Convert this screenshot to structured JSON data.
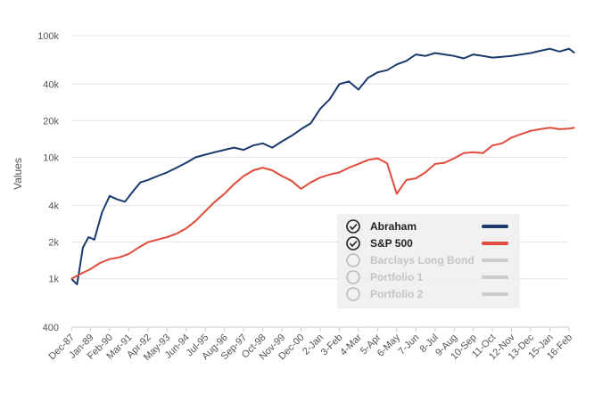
{
  "chart_data": {
    "type": "line",
    "title": "",
    "xlabel": "",
    "ylabel": "Values",
    "y_scale": "log",
    "ylim": [
      400,
      100000
    ],
    "y_ticks": [
      {
        "value": 400,
        "label": "400"
      },
      {
        "value": 1000,
        "label": "1k"
      },
      {
        "value": 2000,
        "label": "2k"
      },
      {
        "value": 4000,
        "label": "4k"
      },
      {
        "value": 10000,
        "label": "10k"
      },
      {
        "value": 20000,
        "label": "20k"
      },
      {
        "value": 40000,
        "label": "40k"
      },
      {
        "value": 100000,
        "label": "100k"
      }
    ],
    "x_ticks": [
      "Dec-87",
      "Jan-89",
      "Feb-90",
      "Mar-91",
      "Apr-92",
      "May-93",
      "Jun-94",
      "Jul-95",
      "Aug-96",
      "Sep-97",
      "Oct-98",
      "Nov-99",
      "Dec-00",
      "2-Jan",
      "3-Feb",
      "4-Mar",
      "5-Apr",
      "6-May",
      "7-Jun",
      "8-Jul",
      "9-Aug",
      "10-Sep",
      "11-Oct",
      "12-Nov",
      "13-Dec",
      "15-Jan",
      "16-Feb"
    ],
    "grid": true,
    "legend_position": "center-right",
    "series": [
      {
        "name": "Abraham",
        "color": "#1a3a6e",
        "active": true,
        "x": [
          0,
          0.3,
          0.6,
          0.9,
          1.2,
          1.6,
          2.0,
          2.4,
          2.8,
          3.2,
          3.6,
          4.0,
          4.5,
          5.0,
          5.5,
          6.0,
          6.5,
          7.0,
          7.5,
          8.0,
          8.5,
          9.0,
          9.5,
          10.0,
          10.5,
          11.0,
          11.5,
          12.0,
          12.5,
          13.0,
          13.5,
          14.0,
          14.5,
          15.0,
          15.5,
          16.0,
          16.5,
          17.0,
          17.5,
          18.0,
          18.5,
          19.0,
          19.5,
          20.0,
          20.5,
          21.0,
          21.5,
          22.0,
          22.5,
          23.0,
          23.5,
          24.0,
          24.5,
          25.0,
          25.5,
          26.0,
          26.3
        ],
        "values": [
          1000,
          900,
          1800,
          2200,
          2100,
          3500,
          4800,
          4500,
          4300,
          5200,
          6200,
          6500,
          7000,
          7500,
          8200,
          9000,
          10000,
          10500,
          11000,
          11500,
          12000,
          11500,
          12500,
          13000,
          12000,
          13500,
          15000,
          17000,
          19000,
          25000,
          30000,
          40000,
          42000,
          36000,
          45000,
          50000,
          52000,
          58000,
          62000,
          70000,
          68000,
          72000,
          70000,
          68000,
          65000,
          70000,
          68000,
          66000,
          67000,
          68000,
          70000,
          72000,
          75000,
          78000,
          74000,
          78000,
          72000
        ]
      },
      {
        "name": "S&P 500",
        "color": "#e04b3c",
        "active": true,
        "x": [
          0,
          0.5,
          1.0,
          1.5,
          2.0,
          2.5,
          3.0,
          3.5,
          4.0,
          4.5,
          5.0,
          5.5,
          6.0,
          6.5,
          7.0,
          7.5,
          8.0,
          8.5,
          9.0,
          9.5,
          10.0,
          10.5,
          11.0,
          11.5,
          12.0,
          12.5,
          13.0,
          13.5,
          14.0,
          14.5,
          15.0,
          15.5,
          16.0,
          16.5,
          17.0,
          17.5,
          18.0,
          18.5,
          19.0,
          19.5,
          20.0,
          20.5,
          21.0,
          21.5,
          22.0,
          22.5,
          23.0,
          23.5,
          24.0,
          24.5,
          25.0,
          25.5,
          26.0,
          26.3
        ],
        "values": [
          1000,
          1100,
          1200,
          1350,
          1450,
          1500,
          1600,
          1800,
          2000,
          2100,
          2200,
          2350,
          2600,
          3000,
          3600,
          4300,
          5000,
          6000,
          7000,
          7800,
          8200,
          7800,
          7000,
          6400,
          5500,
          6200,
          6800,
          7200,
          7500,
          8200,
          8800,
          9500,
          9800,
          8900,
          5000,
          6500,
          6700,
          7500,
          8800,
          9000,
          9800,
          10800,
          11000,
          10800,
          12500,
          13000,
          14500,
          15500,
          16500,
          17000,
          17500,
          17000,
          17200,
          17500
        ]
      },
      {
        "name": "Barclays Long Bond",
        "color": "#cccccc",
        "active": false
      },
      {
        "name": "Portfolio 1",
        "color": "#cccccc",
        "active": false
      },
      {
        "name": "Portfolio 2",
        "color": "#cccccc",
        "active": false
      }
    ]
  }
}
